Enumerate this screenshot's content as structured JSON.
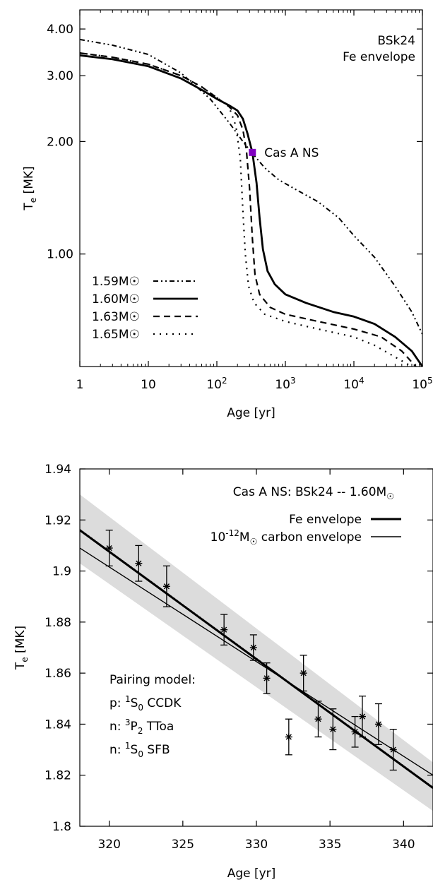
{
  "chart_data": [
    {
      "type": "line",
      "annotation": [
        "BSk24",
        "Fe envelope"
      ],
      "point_label": "Cas A NS",
      "xlabel": "Age [yr]",
      "ylabel": "T_e [MK]",
      "x_scale": "log",
      "y_scale": "log",
      "xlim": [
        1,
        100000
      ],
      "ylim": [
        0.5,
        4.5
      ],
      "x_ticks": [
        {
          "value": 1,
          "label": "1"
        },
        {
          "value": 10,
          "label": "10"
        },
        {
          "value": 100,
          "label": "10",
          "sup": "2"
        },
        {
          "value": 1000,
          "label": "10",
          "sup": "3"
        },
        {
          "value": 10000,
          "label": "10",
          "sup": "4"
        },
        {
          "value": 100000,
          "label": "10",
          "sup": "5"
        }
      ],
      "y_ticks": [
        {
          "value": 1.0,
          "label": "1.00"
        },
        {
          "value": 2.0,
          "label": "2.00"
        },
        {
          "value": 3.0,
          "label": "3.00"
        },
        {
          "value": 4.0,
          "label": "4.00"
        }
      ],
      "cas_a_point": {
        "x": 330,
        "y": 1.87
      },
      "legend_position": "bottom-left",
      "series": [
        {
          "name": "1.59M☉",
          "style": "dash-dot-dot",
          "points": [
            [
              1,
              3.75
            ],
            [
              3,
              3.62
            ],
            [
              10,
              3.42
            ],
            [
              30,
              3.05
            ],
            [
              80,
              2.6
            ],
            [
              150,
              2.25
            ],
            [
              250,
              1.98
            ],
            [
              330,
              1.86
            ],
            [
              500,
              1.7
            ],
            [
              800,
              1.58
            ],
            [
              1500,
              1.48
            ],
            [
              3000,
              1.38
            ],
            [
              6000,
              1.25
            ],
            [
              10000,
              1.12
            ],
            [
              20000,
              0.98
            ],
            [
              40000,
              0.82
            ],
            [
              70000,
              0.7
            ],
            [
              100000,
              0.61
            ]
          ]
        },
        {
          "name": "1.60M☉",
          "style": "solid",
          "points": [
            [
              1,
              3.4
            ],
            [
              3,
              3.32
            ],
            [
              10,
              3.18
            ],
            [
              30,
              2.95
            ],
            [
              60,
              2.75
            ],
            [
              100,
              2.6
            ],
            [
              150,
              2.5
            ],
            [
              200,
              2.42
            ],
            [
              240,
              2.3
            ],
            [
              280,
              2.1
            ],
            [
              330,
              1.87
            ],
            [
              380,
              1.55
            ],
            [
              420,
              1.25
            ],
            [
              470,
              1.03
            ],
            [
              550,
              0.9
            ],
            [
              700,
              0.83
            ],
            [
              1000,
              0.78
            ],
            [
              2000,
              0.74
            ],
            [
              5000,
              0.7
            ],
            [
              10000,
              0.68
            ],
            [
              20000,
              0.65
            ],
            [
              40000,
              0.6
            ],
            [
              70000,
              0.55
            ],
            [
              100000,
              0.5
            ]
          ]
        },
        {
          "name": "1.63M☉",
          "style": "dashed",
          "points": [
            [
              1,
              3.45
            ],
            [
              3,
              3.36
            ],
            [
              10,
              3.22
            ],
            [
              30,
              3.0
            ],
            [
              60,
              2.8
            ],
            [
              100,
              2.62
            ],
            [
              150,
              2.48
            ],
            [
              200,
              2.35
            ],
            [
              240,
              2.15
            ],
            [
              270,
              1.9
            ],
            [
              300,
              1.5
            ],
            [
              330,
              1.1
            ],
            [
              360,
              0.88
            ],
            [
              420,
              0.78
            ],
            [
              600,
              0.72
            ],
            [
              1000,
              0.69
            ],
            [
              3000,
              0.66
            ],
            [
              10000,
              0.63
            ],
            [
              25000,
              0.6
            ],
            [
              50000,
              0.55
            ],
            [
              80000,
              0.5
            ]
          ]
        },
        {
          "name": "1.65M☉",
          "style": "dotted",
          "points": [
            [
              1,
              3.45
            ],
            [
              3,
              3.36
            ],
            [
              10,
              3.22
            ],
            [
              30,
              3.0
            ],
            [
              60,
              2.8
            ],
            [
              100,
              2.62
            ],
            [
              150,
              2.48
            ],
            [
              190,
              2.2
            ],
            [
              220,
              1.8
            ],
            [
              240,
              1.3
            ],
            [
              260,
              1.0
            ],
            [
              290,
              0.82
            ],
            [
              350,
              0.74
            ],
            [
              500,
              0.69
            ],
            [
              1000,
              0.66
            ],
            [
              3000,
              0.63
            ],
            [
              10000,
              0.6
            ],
            [
              20000,
              0.57
            ],
            [
              40000,
              0.53
            ],
            [
              70000,
              0.5
            ]
          ]
        }
      ]
    },
    {
      "type": "scatter",
      "annotation": "Cas A NS: BSk24 -- 1.60M☉",
      "legend_position": "top-right",
      "xlabel": "Age [yr]",
      "ylabel": "T_e [MK]",
      "xlim": [
        318,
        342
      ],
      "ylim": [
        1.8,
        1.94
      ],
      "x_ticks": [
        "320",
        "325",
        "330",
        "335",
        "340"
      ],
      "y_ticks": [
        "1.8",
        "1.82",
        "1.84",
        "1.86",
        "1.88",
        "1.9",
        "1.92",
        "1.94"
      ],
      "grid": false,
      "pairing_model": {
        "title": "Pairing model:",
        "lines": [
          {
            "prefix": "p: ",
            "sup": "1",
            "sym": "S",
            "sub": "0",
            "rest": " CCDK"
          },
          {
            "prefix": "n: ",
            "sup": "3",
            "sym": "P",
            "sub": "2",
            "rest": " TToa"
          },
          {
            "prefix": "n: ",
            "sup": "1",
            "sym": "S",
            "sub": "0",
            "rest": " SFB"
          }
        ]
      },
      "series": [
        {
          "name": "Fe envelope",
          "style": "thick",
          "points": [
            [
              318,
              1.916
            ],
            [
              342,
              1.815
            ]
          ]
        },
        {
          "name": "10⁻¹²M☉ carbon envelope",
          "style": "thin",
          "points": [
            [
              318,
              1.909
            ],
            [
              342,
              1.82
            ]
          ]
        }
      ],
      "observations": [
        {
          "x": 320.0,
          "y": 1.909,
          "err": 0.007
        },
        {
          "x": 322.0,
          "y": 1.903,
          "err": 0.007
        },
        {
          "x": 323.9,
          "y": 1.894,
          "err": 0.008
        },
        {
          "x": 327.8,
          "y": 1.877,
          "err": 0.006
        },
        {
          "x": 329.8,
          "y": 1.87,
          "err": 0.005
        },
        {
          "x": 330.7,
          "y": 1.858,
          "err": 0.006
        },
        {
          "x": 332.2,
          "y": 1.835,
          "err": 0.007
        },
        {
          "x": 333.2,
          "y": 1.86,
          "err": 0.007
        },
        {
          "x": 334.2,
          "y": 1.842,
          "err": 0.007
        },
        {
          "x": 335.2,
          "y": 1.838,
          "err": 0.008
        },
        {
          "x": 336.7,
          "y": 1.837,
          "err": 0.006
        },
        {
          "x": 337.2,
          "y": 1.843,
          "err": 0.008
        },
        {
          "x": 338.3,
          "y": 1.84,
          "err": 0.008
        },
        {
          "x": 339.3,
          "y": 1.83,
          "err": 0.008
        }
      ],
      "uncertainty_band": {
        "x": [
          318,
          342
        ],
        "upper": [
          1.93,
          1.825
        ],
        "lower": [
          1.903,
          1.806
        ]
      }
    }
  ]
}
